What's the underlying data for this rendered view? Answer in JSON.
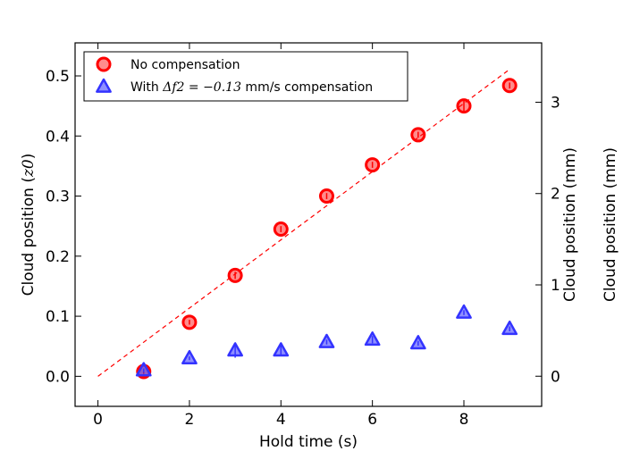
{
  "chart_data": {
    "type": "scatter",
    "xlabel": "Hold time (s)",
    "ylabel": "Cloud position (z0)",
    "ylabel_parts": {
      "text": "Cloud position (",
      "math": "z0",
      "close": ")"
    },
    "ylabel_right": "Cloud position (mm)",
    "ylabel_far_right": "Cloud position (mm)",
    "xlim": [
      -0.5,
      9.7
    ],
    "ylim": [
      -0.05,
      0.555
    ],
    "ylim_right_mm": [
      -0.33,
      3.65
    ],
    "xticks": [
      0,
      2,
      4,
      6,
      8
    ],
    "xtick_labels": [
      "0",
      "2",
      "4",
      "6",
      "8"
    ],
    "yticks": [
      0.0,
      0.1,
      0.2,
      0.3,
      0.4,
      0.5
    ],
    "ytick_labels": [
      "0.0",
      "0.1",
      "0.2",
      "0.3",
      "0.4",
      "0.5"
    ],
    "yticks_right": [
      0,
      1,
      2,
      3
    ],
    "ytick_right_labels": [
      "0",
      "1",
      "2",
      "3"
    ],
    "series": [
      {
        "name": "No compensation",
        "marker": "circle",
        "color": "#ff0000",
        "x": [
          1,
          2,
          3,
          4,
          5,
          6,
          7,
          8,
          9
        ],
        "y": [
          0.008,
          0.09,
          0.168,
          0.245,
          0.3,
          0.352,
          0.402,
          0.45,
          0.484
        ],
        "yerr": [
          0.004,
          0.004,
          0.006,
          0.005,
          0.005,
          0.005,
          0.005,
          0.01,
          0.005
        ]
      },
      {
        "name": "With Δf2 = −0.13 mm/s compensation",
        "legend_parts": {
          "text_before": "With ",
          "math": "Δf2 = −0.13",
          "text_after": " mm/s compensation"
        },
        "marker": "triangle",
        "color": "#3333ff",
        "x": [
          1,
          2,
          3,
          4,
          5,
          6,
          7,
          8,
          9
        ],
        "y": [
          0.01,
          0.03,
          0.043,
          0.043,
          0.057,
          0.061,
          0.055,
          0.106,
          0.079
        ],
        "yerr": [
          0.003,
          0.003,
          0.012,
          0.008,
          0.004,
          0.006,
          0.004,
          0.004,
          0.004
        ]
      }
    ],
    "fit_line": {
      "style": "dashed",
      "color": "#ff0000",
      "x": [
        0,
        9
      ],
      "y": [
        0.0,
        0.511
      ]
    },
    "legend_location": "upper-left"
  }
}
